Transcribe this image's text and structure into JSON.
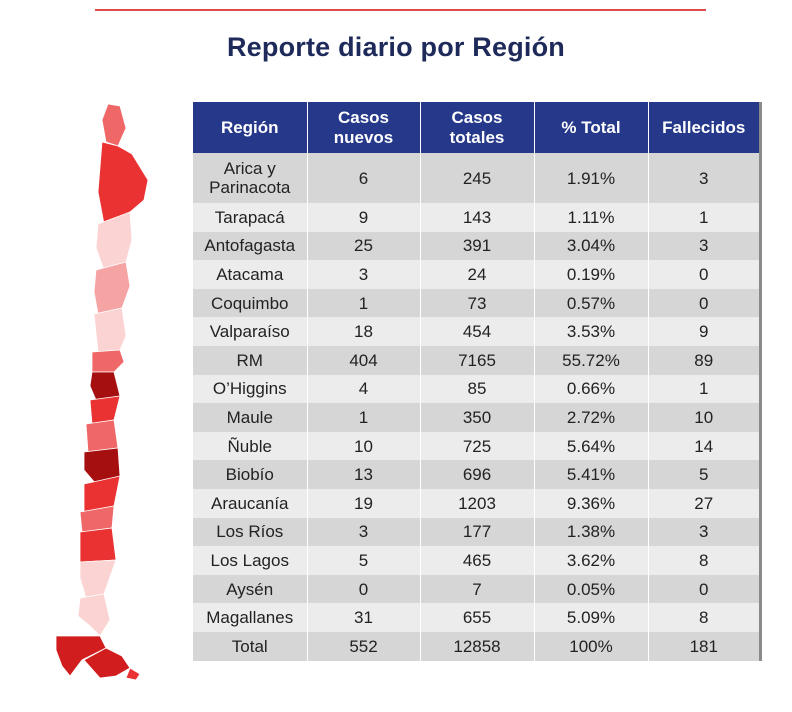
{
  "page_title": "Reporte diario por Región",
  "colors": {
    "header_bg": "#26388a",
    "title_text": "#1e2a5a",
    "top_rule": "#e04a4a",
    "map_shades": [
      "#fbd3d3",
      "#f5a3a3",
      "#f06767",
      "#ea3232",
      "#d11d1d",
      "#a60f0f"
    ]
  },
  "chart_data": {
    "type": "table",
    "title": "Reporte diario por Región",
    "columns": [
      "Región",
      "Casos nuevos",
      "Casos totales",
      "% Total",
      "Fallecidos"
    ],
    "rows": [
      [
        "Arica y Parinacota",
        "6",
        "245",
        "1.91%",
        "3"
      ],
      [
        "Tarapacá",
        "9",
        "143",
        "1.11%",
        "1"
      ],
      [
        "Antofagasta",
        "25",
        "391",
        "3.04%",
        "3"
      ],
      [
        "Atacama",
        "3",
        "24",
        "0.19%",
        "0"
      ],
      [
        "Coquimbo",
        "1",
        "73",
        "0.57%",
        "0"
      ],
      [
        "Valparaíso",
        "18",
        "454",
        "3.53%",
        "9"
      ],
      [
        "RM",
        "404",
        "7165",
        "55.72%",
        "89"
      ],
      [
        "O’Higgins",
        "4",
        "85",
        "0.66%",
        "1"
      ],
      [
        "Maule",
        "1",
        "350",
        "2.72%",
        "10"
      ],
      [
        "Ñuble",
        "10",
        "725",
        "5.64%",
        "14"
      ],
      [
        "Biobío",
        "13",
        "696",
        "5.41%",
        "5"
      ],
      [
        "Araucanía",
        "19",
        "1203",
        "9.36%",
        "27"
      ],
      [
        "Los Ríos",
        "3",
        "177",
        "1.38%",
        "3"
      ],
      [
        "Los Lagos",
        "5",
        "465",
        "3.62%",
        "8"
      ],
      [
        "Aysén",
        "0",
        "7",
        "0.05%",
        "0"
      ],
      [
        "Magallanes",
        "31",
        "655",
        "5.09%",
        "8"
      ]
    ],
    "total": [
      "Total",
      "552",
      "12858",
      "100%",
      "181"
    ]
  }
}
